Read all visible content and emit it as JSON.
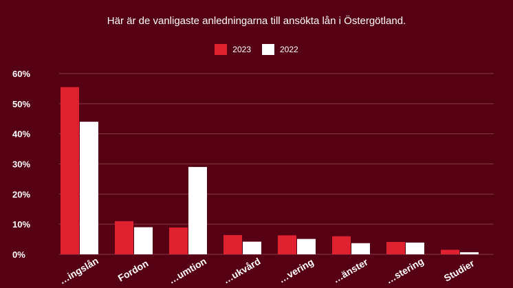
{
  "chart_data": {
    "type": "bar",
    "title": "Här är de vanligaste anledningarna till ansökta lån i Östergötland.",
    "categories": [
      "…ingslån",
      "Fordon",
      "…umtion",
      "…ukvård",
      "…vering",
      "…änster",
      "…stering",
      "Studier"
    ],
    "series": [
      {
        "name": "2023",
        "color": "#e0212f",
        "values": [
          55.5,
          11.0,
          8.9,
          6.4,
          6.3,
          6.0,
          4.1,
          1.5
        ]
      },
      {
        "name": "2022",
        "color": "#ffffff",
        "values": [
          44.0,
          9.0,
          29.0,
          4.2,
          5.1,
          3.7,
          3.9,
          0.7
        ]
      }
    ],
    "yticks": [
      "0%",
      "10%",
      "20%",
      "30%",
      "40%",
      "50%",
      "60%"
    ],
    "ylim": [
      0,
      60
    ],
    "grid": true,
    "legend_position": "top-center",
    "gridline_color": "#8a3a48"
  }
}
